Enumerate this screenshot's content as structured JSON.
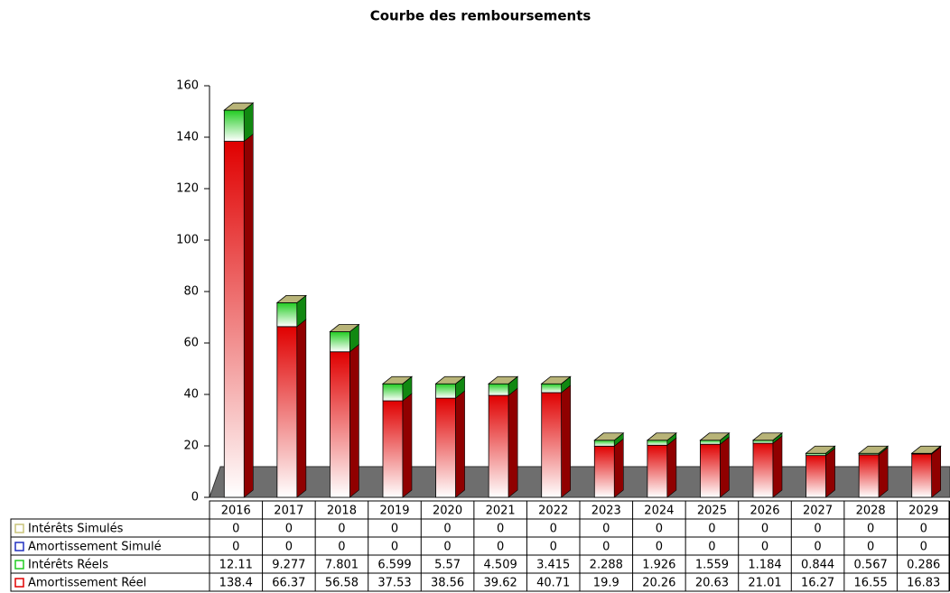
{
  "chart_data": {
    "type": "bar",
    "title": "Courbe des remboursements",
    "categories": [
      "2016",
      "2017",
      "2018",
      "2019",
      "2020",
      "2021",
      "2022",
      "2023",
      "2024",
      "2025",
      "2026",
      "2027",
      "2028",
      "2029"
    ],
    "series": [
      {
        "name": "Intérêts Simulés",
        "color": "#c8c47a",
        "values": [
          0,
          0,
          0,
          0,
          0,
          0,
          0,
          0,
          0,
          0,
          0,
          0,
          0,
          0
        ]
      },
      {
        "name": "Amortissement Simulé",
        "color": "#2030c0",
        "values": [
          0,
          0,
          0,
          0,
          0,
          0,
          0,
          0,
          0,
          0,
          0,
          0,
          0,
          0
        ]
      },
      {
        "name": "Intérêts Réels",
        "color": "#22cc22",
        "values": [
          12.11,
          9.277,
          7.801,
          6.599,
          5.57,
          4.509,
          3.415,
          2.288,
          1.926,
          1.559,
          1.184,
          0.844,
          0.567,
          0.286
        ]
      },
      {
        "name": "Amortissement Réel",
        "color": "#e00000",
        "values": [
          138.4,
          66.37,
          56.58,
          37.53,
          38.56,
          39.62,
          40.71,
          19.9,
          20.26,
          20.63,
          21.01,
          16.27,
          16.55,
          16.83
        ]
      }
    ],
    "stacked": true,
    "ylim": [
      0,
      160
    ],
    "yticks": [
      0,
      20,
      40,
      60,
      80,
      100,
      120,
      140,
      160
    ]
  }
}
